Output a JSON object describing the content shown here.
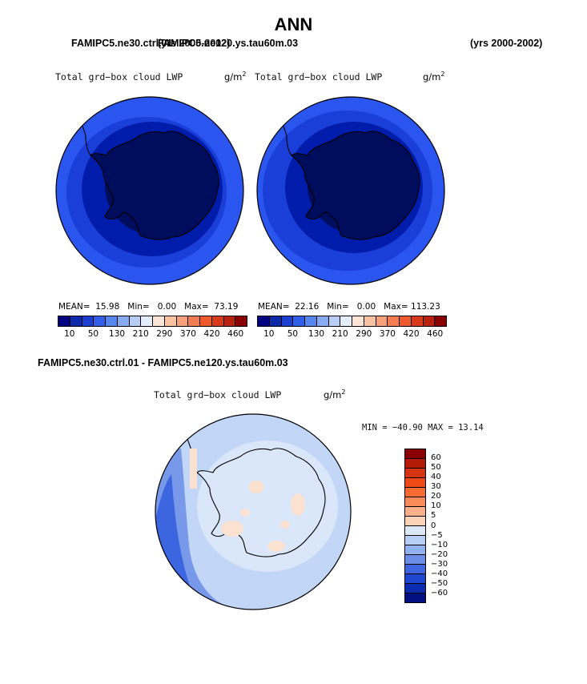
{
  "header": {
    "title": "ANN",
    "left_case": "FAMIPC5.ne30.ctrl.01",
    "left_case_overlap": "FAMIPC5.ne120.ys.tau60m.03",
    "left_years": "(yrs 2000-2002)",
    "right_years": "(yrs 2000-2002)"
  },
  "panel_a": {
    "variable": "Total grd−box cloud LWP",
    "units": "g/m",
    "units_exp": "2",
    "mean_label": "MEAN=",
    "mean": "15.98",
    "min_label": "Min=",
    "min": "0.00",
    "max_label": "Max=",
    "max": "73.19"
  },
  "panel_b": {
    "variable": "Total grd−box cloud LWP",
    "units": "g/m",
    "units_exp": "2",
    "mean_label": "MEAN=",
    "mean": "22.16",
    "min_label": "Min=",
    "min": "0.00",
    "max_label": "Max=",
    "max": "113.23"
  },
  "colorbar_top": {
    "labels": [
      "10",
      "50",
      "130",
      "210",
      "290",
      "370",
      "420",
      "460"
    ],
    "colors": [
      "#000080",
      "#0d28a8",
      "#1c3fd0",
      "#2f5fe8",
      "#5585ee",
      "#88aaf2",
      "#b8ccf8",
      "#e4edfb",
      "#fde4d4",
      "#fbc2a2",
      "#f8a07a",
      "#f47c52",
      "#ee5a2e",
      "#d8391a",
      "#b82010",
      "#8a0000"
    ]
  },
  "diff": {
    "title": "FAMIPC5.ne30.ctrl.01 - FAMIPC5.ne120.ys.tau60m.03",
    "variable": "Total grd−box cloud LWP",
    "units": "g/m",
    "units_exp": "2",
    "minmax": "MIN = −40.90  MAX =   13.14",
    "colorbar_labels": [
      "60",
      "50",
      "40",
      "30",
      "20",
      "10",
      "5",
      "0",
      "−5",
      "−10",
      "−20",
      "−30",
      "−40",
      "−50",
      "−60"
    ],
    "colorbar_colors": [
      "#8a0000",
      "#b41a08",
      "#d6330f",
      "#ee4a18",
      "#f76a34",
      "#f98c58",
      "#fbb08a",
      "#fcd2b6",
      "#dce8fa",
      "#b8cef5",
      "#90b0f0",
      "#6a8ee8",
      "#3f66e0",
      "#1f46d0",
      "#0b2bb0",
      "#001080"
    ]
  },
  "map_colors": {
    "darkest": "#000c5c",
    "dark": "#001caa",
    "mid": "#1a3fd8",
    "bright": "#2a55ee",
    "diff_bg": "#c2d6f7",
    "diff_light": "#dae6fa",
    "diff_blue": "#7898ea",
    "diff_deep": "#3c66e0",
    "diff_peach": "#fbe2d0",
    "coast": "#000000"
  }
}
